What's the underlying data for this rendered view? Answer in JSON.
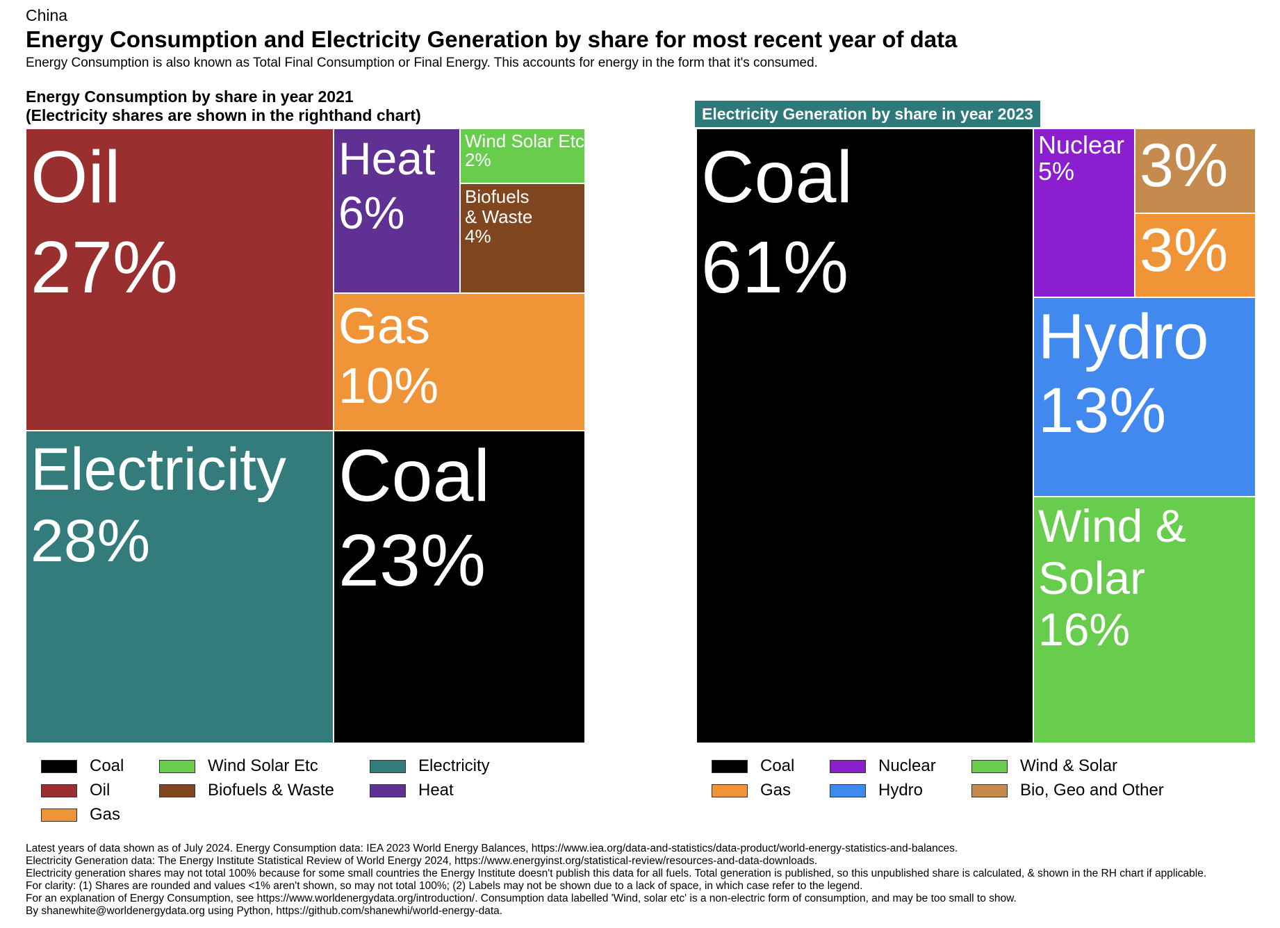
{
  "header": {
    "country": "China",
    "title": "Energy Consumption and Electricity Generation by share for most recent year of data",
    "subtitle": "Energy Consumption is also known as Total Final Consumption or Final Energy. This accounts for energy in the form that it's consumed."
  },
  "chart_data": [
    {
      "type": "treemap",
      "title_line1": "Energy Consumption by share in year 2021",
      "title_line2": "(Electricity shares are shown in the righthand chart)",
      "items": [
        {
          "name": "Oil",
          "value": 27,
          "label": "Oil",
          "pct": "27%",
          "color": "#9a2f2f"
        },
        {
          "name": "Electricity",
          "value": 28,
          "label": "Electricity",
          "pct": "28%",
          "color": "#347c7b"
        },
        {
          "name": "Heat",
          "value": 6,
          "label": "Heat",
          "pct": "6%",
          "color": "#5e3192"
        },
        {
          "name": "Wind Solar Etc",
          "value": 2,
          "label": "Wind Solar Etc",
          "pct": "2%",
          "color": "#68cc4d"
        },
        {
          "name": "Biofuels & Waste",
          "value": 4,
          "label": "Biofuels\n& Waste",
          "pct": "4%",
          "color": "#7f4620"
        },
        {
          "name": "Gas",
          "value": 10,
          "label": "Gas",
          "pct": "10%",
          "color": "#ef9437"
        },
        {
          "name": "Coal",
          "value": 23,
          "label": "Coal",
          "pct": "23%",
          "color": "#000000"
        }
      ],
      "legend": [
        "Coal",
        "Oil",
        "Gas",
        "Wind Solar Etc",
        "Biofuels & Waste",
        "Electricity",
        "Heat"
      ]
    },
    {
      "type": "treemap",
      "title": "Electricity Generation by share in year 2023",
      "items": [
        {
          "name": "Coal",
          "value": 61,
          "label": "Coal",
          "pct": "61%",
          "color": "#000000"
        },
        {
          "name": "Nuclear",
          "value": 5,
          "label": "Nuclear",
          "pct": "5%",
          "color": "#8b1fcf"
        },
        {
          "name": "Bio, Geo and Other",
          "value": 3,
          "label": "",
          "pct": "3%",
          "color": "#c58a4d"
        },
        {
          "name": "Gas",
          "value": 3,
          "label": "",
          "pct": "3%",
          "color": "#ef9437"
        },
        {
          "name": "Hydro",
          "value": 13,
          "label": "Hydro",
          "pct": "13%",
          "color": "#4188ef"
        },
        {
          "name": "Wind & Solar",
          "value": 16,
          "label": "Wind &\nSolar",
          "pct": "16%",
          "color": "#68cc4d"
        }
      ],
      "legend": [
        "Coal",
        "Gas",
        "Nuclear",
        "Hydro",
        "Wind & Solar",
        "Bio, Geo and Other"
      ]
    }
  ],
  "footnotes": [
    "Latest years of data shown as of July 2024. Energy Consumption data: IEA 2023 World Energy Balances, https://www.iea.org/data-and-statistics/data-product/world-energy-statistics-and-balances.",
    "Electricity Generation data: The Energy Institute Statistical Review of World Energy 2024, https://www.energyinst.org/statistical-review/resources-and-data-downloads.",
    "Electricity generation shares may not total 100% because for some small countries the Energy Institute doesn't publish this data for all fuels. Total generation is published, so this unpublished share is calculated, & shown in the RH chart if applicable.",
    "For clarity: (1) Shares are rounded and values <1% aren't shown, so may not total 100%; (2) Labels may not be shown due to a lack of space, in which case refer to the legend.",
    "For an explanation of Energy Consumption, see https://www.worldenergydata.org/introduction/. Consumption data labelled 'Wind, solar etc' is a non-electric form of consumption, and may be too small to show.",
    "By shanewhite@worldenergydata.org using Python, https://github.com/shanewhi/world-energy-data."
  ]
}
